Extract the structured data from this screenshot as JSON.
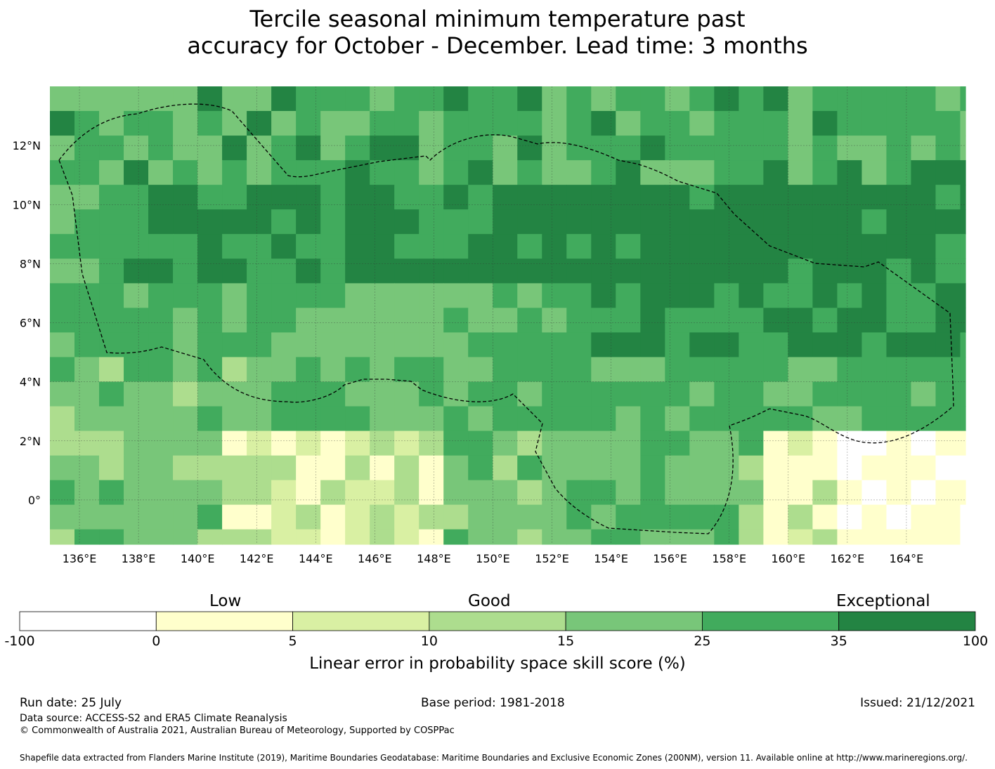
{
  "title": {
    "line1": "Tercile seasonal minimum temperature past",
    "line2": "accuracy for October - December. Lead time: 3 months"
  },
  "map": {
    "lon_range": [
      135,
      166
    ],
    "lat_range": [
      -1.5,
      14
    ],
    "lon_tick_values": [
      136,
      138,
      140,
      142,
      144,
      146,
      148,
      150,
      152,
      154,
      156,
      158,
      160,
      162,
      164
    ],
    "lon_ticks": [
      "136°E",
      "138°E",
      "140°E",
      "142°E",
      "144°E",
      "146°E",
      "148°E",
      "150°E",
      "152°E",
      "154°E",
      "156°E",
      "158°E",
      "160°E",
      "162°E",
      "164°E"
    ],
    "lat_tick_values": [
      12,
      10,
      8,
      6,
      4,
      2,
      0
    ],
    "lat_ticks": [
      "12°N",
      "10°N",
      "8°N",
      "6°N",
      "4°N",
      "2°N",
      "0°"
    ],
    "gridlines": true,
    "eez_boundary": "dashed",
    "dominant_categories": {
      "north_band_7N_to_12N": "35 to 100 (Exceptional)",
      "central_3N_to_7N": "15 to 35",
      "south_west_below_3N": "10 to 25",
      "south_east_below_2N": "-100 to 10"
    }
  },
  "colorbar": {
    "categories": [
      "Low",
      "Good",
      "Exceptional"
    ],
    "bounds": [
      "-100",
      "0",
      "5",
      "10",
      "15",
      "25",
      "35",
      "100"
    ],
    "colors": [
      "#ffffff",
      "#ffffcc",
      "#d9f0a3",
      "#addd8e",
      "#78c679",
      "#41ab5d",
      "#238443"
    ],
    "label": "Linear error in probability space skill score (%)"
  },
  "footer": {
    "run_date": "Run date: 25 July",
    "base_period": "Base period: 1981-2018",
    "issued": "Issued: 21/12/2021",
    "data_source": "Data source: ACCESS-S2 and ERA5 Climate Reanalysis",
    "copyright": "© Commonwealth of Australia 2021, Australian Bureau of Meteorology, Supported by COSPPac",
    "shapefile": "Shapefile data extracted from Flanders Marine Institute (2019), Maritime Boundaries Geodatabase: Maritime Boundaries and Exclusive Economic Zones (200NM), version 11. Available online at http://www.marineregions.org/."
  }
}
